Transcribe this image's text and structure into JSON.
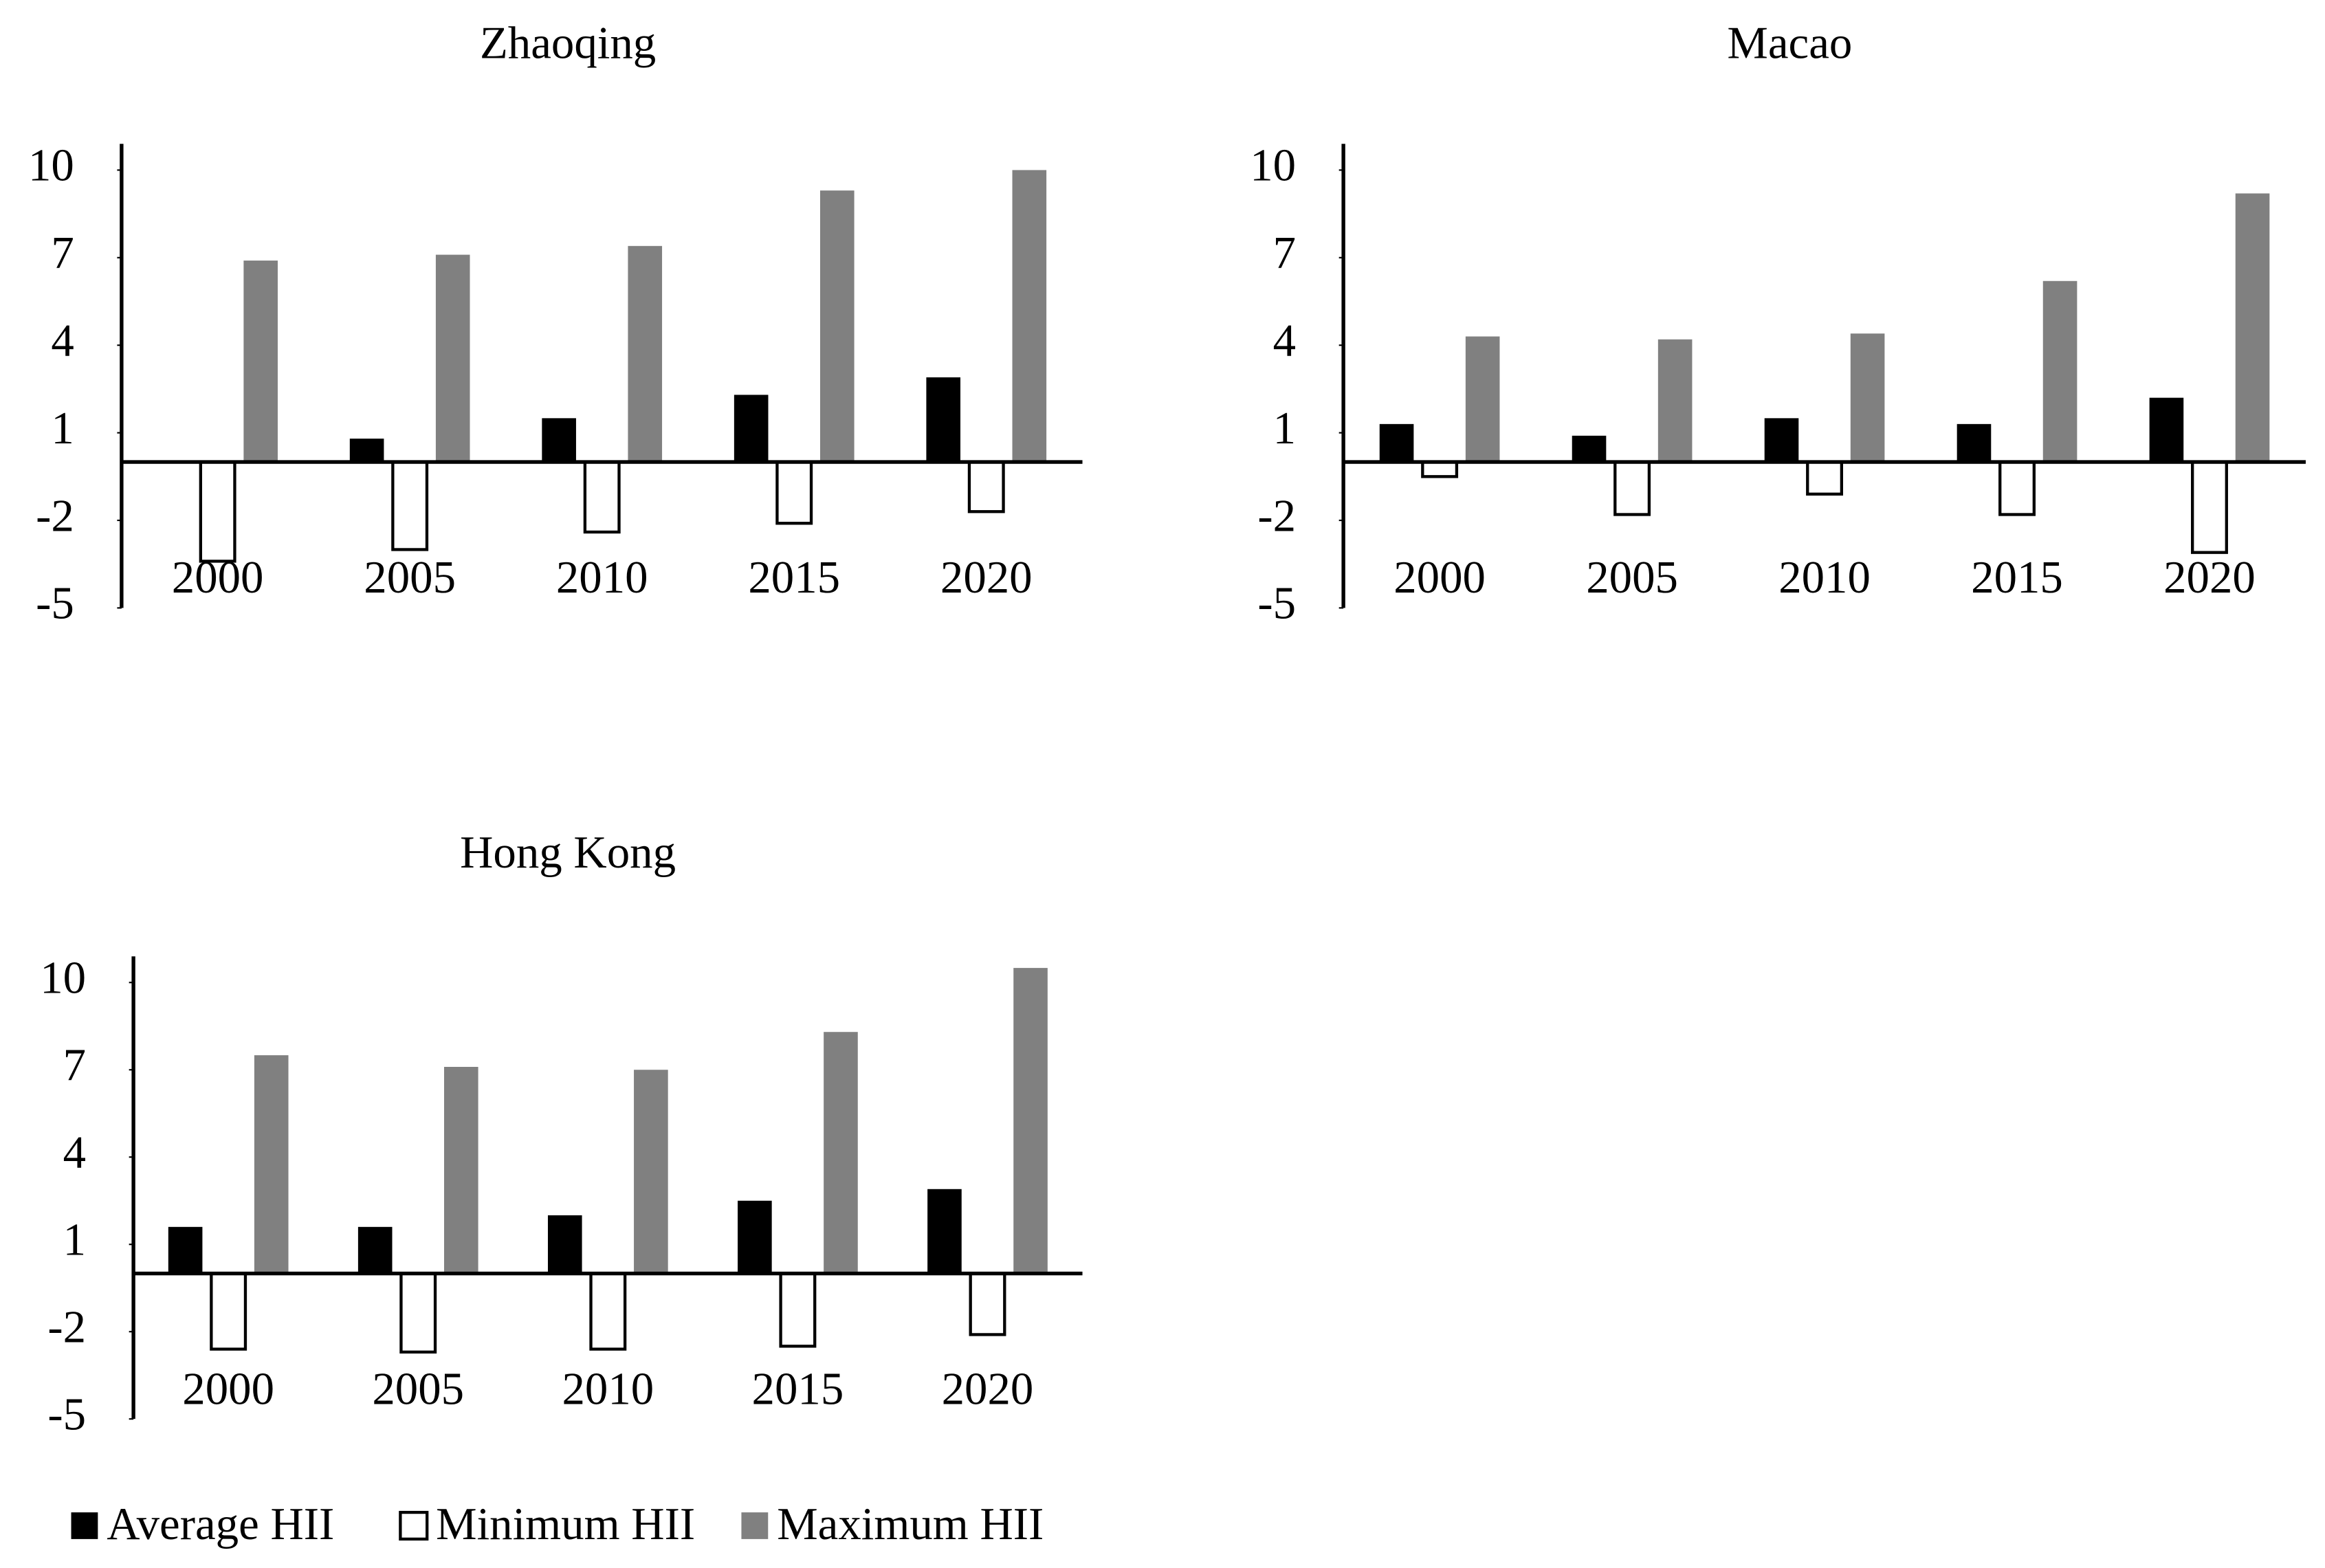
{
  "chart_data": [
    {
      "type": "bar",
      "title": "Zhaoqing",
      "categories": [
        "2000",
        "2005",
        "2010",
        "2015",
        "2020"
      ],
      "series": [
        {
          "name": "Average HII",
          "color": "#000000",
          "values": [
            0.05,
            0.8,
            1.5,
            2.3,
            2.9
          ]
        },
        {
          "name": "Minimum HII",
          "color": "#ffffff",
          "values": [
            -3.4,
            -3.0,
            -2.4,
            -2.1,
            -1.7
          ]
        },
        {
          "name": "Maximum HII",
          "color": "#808080",
          "values": [
            6.9,
            7.1,
            7.4,
            9.3,
            10.0
          ]
        }
      ],
      "ylim": [
        -5,
        11
      ],
      "yticks": [
        -5,
        -2,
        1,
        4,
        7,
        10
      ]
    },
    {
      "type": "bar",
      "title": "Macao",
      "categories": [
        "2000",
        "2005",
        "2010",
        "2015",
        "2020"
      ],
      "series": [
        {
          "name": "Average HII",
          "color": "#000000",
          "values": [
            1.3,
            0.9,
            1.5,
            1.3,
            2.2
          ]
        },
        {
          "name": "Minimum HII",
          "color": "#ffffff",
          "values": [
            -0.5,
            -1.8,
            -1.1,
            -1.8,
            -3.1
          ]
        },
        {
          "name": "Maximum HII",
          "color": "#808080",
          "values": [
            4.3,
            4.2,
            4.4,
            6.2,
            9.2
          ]
        }
      ],
      "ylim": [
        -5,
        11
      ],
      "yticks": [
        -5,
        -2,
        1,
        4,
        7,
        10
      ]
    },
    {
      "type": "bar",
      "title": "Hong Kong",
      "categories": [
        "2000",
        "2005",
        "2010",
        "2015",
        "2020"
      ],
      "series": [
        {
          "name": "Average HII",
          "color": "#000000",
          "values": [
            1.6,
            1.6,
            2.0,
            2.5,
            2.9
          ]
        },
        {
          "name": "Minimum HII",
          "color": "#ffffff",
          "values": [
            -2.6,
            -2.7,
            -2.6,
            -2.5,
            -2.1
          ]
        },
        {
          "name": "Maximum HII",
          "color": "#808080",
          "values": [
            7.5,
            7.1,
            7.0,
            8.3,
            10.5
          ]
        }
      ],
      "ylim": [
        -5,
        11
      ],
      "yticks": [
        -5,
        -2,
        1,
        4,
        7,
        10
      ]
    }
  ]
}
